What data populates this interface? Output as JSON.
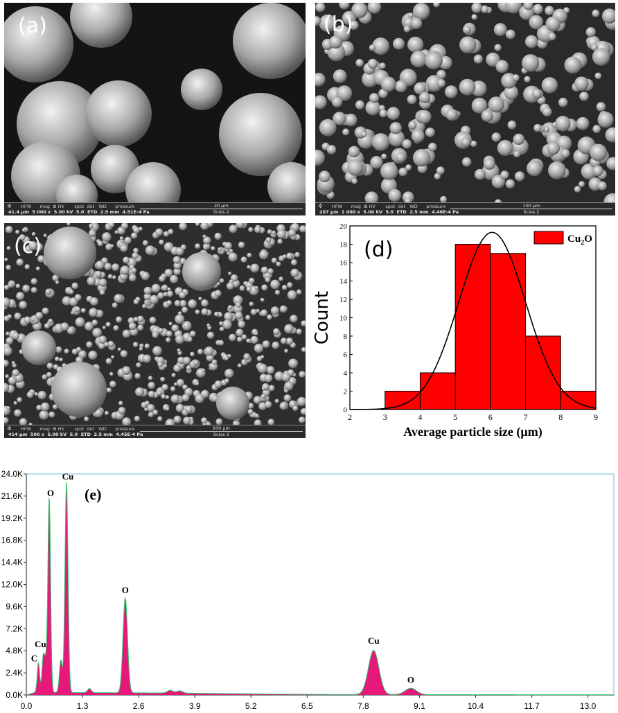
{
  "panels": {
    "a": {
      "label": "(a)",
      "hfw": "41.4 µm",
      "mag": "5 000 x",
      "hv": "5.00 kV",
      "spot": "5.0",
      "det": "ETD",
      "wd": "2.5 mm",
      "pressure": "4.51E-4 Pa",
      "scalebar": "20 µm",
      "instrument": "Scios 2"
    },
    "b": {
      "label": "(b)",
      "hfw": "207 µm",
      "mag": "1 000 x",
      "hv": "5.00 kV",
      "spot": "5.0",
      "det": "ETD",
      "wd": "2.5 mm",
      "pressure": "4.46E-4 Pa",
      "scalebar": "100 µm",
      "instrument": "Scios 2"
    },
    "c": {
      "label": "(c)",
      "hfw": "414 µm",
      "mag": "500 x",
      "hv": "5.00 kV",
      "spot": "5.0",
      "det": "ETD",
      "wd": "2.5 mm",
      "pressure": "4.45E-4 Pa",
      "scalebar": "200 µm",
      "instrument": "Scios 2"
    }
  },
  "databar_header": "HFW      mag  ⊞ HV       spot  det   WD      pressure",
  "chart_data": [
    {
      "type": "bar",
      "panel_label": "(d)",
      "xlabel": "Average particle size (µm)",
      "ylabel": "Count",
      "legend": "Cu2O",
      "legend_position": "top-right",
      "xlim": [
        2,
        9
      ],
      "ylim": [
        0,
        20
      ],
      "xticks": [
        2,
        3,
        4,
        5,
        6,
        7,
        8,
        9
      ],
      "yticks": [
        0,
        2,
        4,
        6,
        8,
        10,
        12,
        14,
        16,
        18,
        20
      ],
      "bins": [
        [
          3,
          4
        ],
        [
          4,
          5
        ],
        [
          5,
          6
        ],
        [
          6,
          7
        ],
        [
          7,
          8
        ],
        [
          8,
          9
        ]
      ],
      "values": [
        2,
        4,
        18,
        17,
        8,
        2
      ],
      "fit": {
        "type": "gaussian",
        "center": 6.05,
        "peak": 19.3,
        "sigma": 0.95
      },
      "bar_color": "#ff0000",
      "fit_color": "#000000"
    },
    {
      "type": "area",
      "panel_label": "(e)",
      "xlim": [
        0,
        13.6
      ],
      "ylim": [
        0,
        24000
      ],
      "xticks": [
        "0.0",
        "1.3",
        "2.6",
        "3.9",
        "5.2",
        "6.5",
        "7.8",
        "9.1",
        "10.4",
        "11.7",
        "13.0"
      ],
      "yticks": [
        "0.0K",
        "2.4K",
        "4.8K",
        "7.2K",
        "9.6K",
        "12.0K",
        "14.4K",
        "16.8K",
        "19.2K",
        "21.6K",
        "24.0K"
      ],
      "peaks": [
        {
          "x": 0.28,
          "y": 3200,
          "label": "C"
        },
        {
          "x": 0.39,
          "y": 3700,
          "label": "Cu"
        },
        {
          "x": 0.53,
          "y": 21000,
          "label": "O"
        },
        {
          "x": 0.93,
          "y": 22800,
          "label": "Cu"
        },
        {
          "x": 2.29,
          "y": 10300,
          "label": "O"
        },
        {
          "x": 8.04,
          "y": 4800,
          "label": "Cu"
        },
        {
          "x": 8.9,
          "y": 700,
          "label": "O"
        }
      ],
      "minor_peaks": [
        {
          "x": 0.45,
          "y": 3000
        },
        {
          "x": 0.8,
          "y": 3500
        },
        {
          "x": 1.46,
          "y": 450
        },
        {
          "x": 3.33,
          "y": 300
        },
        {
          "x": 3.55,
          "y": 250
        }
      ],
      "fill_color": "#e6197a",
      "line_color": "#2ecc71",
      "frame_color": "#9fd4e6"
    }
  ]
}
